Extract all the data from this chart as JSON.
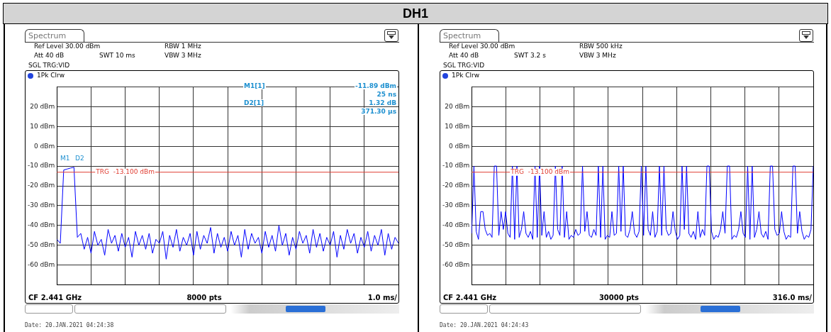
{
  "chart_data": [
    {
      "type": "line",
      "title": "DH1",
      "annotations": [
        "Spectrum",
        "Ref Level 30.00 dBm",
        "Att 40 dB",
        "SWT 10 ms",
        "RBW 1 MHz",
        "VBW 3 MHz",
        "SGL TRG:VID",
        "1Pk Clrw",
        "CF 2.441 GHz",
        "8000 pts",
        "1.0 ms/",
        "Date: 20.JAN.2021 04:24:38",
        "M1[1]",
        "-11.89 dBm",
        "25 ns",
        "D2[1]",
        "1.32 dB",
        "371.30 μs",
        "M1",
        "D2"
      ],
      "categories": [
        null,
        null,
        null,
        null,
        null,
        null,
        null,
        null,
        null,
        null,
        null,
        null,
        null,
        null,
        null,
        null,
        null,
        null,
        null,
        null,
        null,
        null,
        null,
        null,
        null,
        null,
        null,
        null,
        null,
        null,
        null,
        null,
        null,
        null,
        null,
        null,
        null,
        null,
        null,
        null,
        null,
        null,
        null,
        null,
        null,
        null,
        null,
        null,
        null,
        null,
        null,
        null,
        null,
        null,
        null,
        null,
        null,
        null,
        null,
        null,
        null,
        null,
        null,
        null,
        null,
        null,
        null,
        null,
        null,
        null,
        null,
        null,
        null,
        null,
        null,
        null,
        null,
        null,
        null,
        null,
        null,
        null,
        null,
        null,
        null,
        null,
        null,
        null,
        null,
        null,
        null,
        null,
        null,
        null,
        null,
        null,
        null,
        null,
        null,
        null,
        null
      ],
      "ylim": [
        -70,
        30
      ],
      "yticks": [
        {
          "value": -70,
          "label": null
        },
        {
          "value": -60,
          "label": "-60 dBm"
        },
        {
          "value": -50,
          "label": "-50 dBm"
        },
        {
          "value": -40,
          "label": "-40 dBm"
        },
        {
          "value": -30,
          "label": "-30 dBm"
        },
        {
          "value": -20,
          "label": "-20 dBm"
        },
        {
          "value": -10,
          "label": "-10 dBm"
        },
        {
          "value": 0,
          "label": "0 dBm"
        },
        {
          "value": 10,
          "label": "10 dBm"
        },
        {
          "value": 20,
          "label": "20 dBm"
        },
        {
          "value": 30,
          "label": null
        }
      ],
      "tick_labels": "y",
      "grid": true,
      "legend": false,
      "marker": "none",
      "line_style": "solid",
      "ref_lines": [
        {
          "axis": "y",
          "value": -13.1,
          "label": "TRG  -13.100 dBm",
          "color": "#e03c31"
        }
      ],
      "series": [
        {
          "color": "#0000ff",
          "values": [
            -47,
            -49,
            -12,
            -11.5,
            -11,
            -10.6,
            -46,
            -44,
            -52,
            -46,
            -54,
            -43,
            -50,
            -47,
            -55,
            -42,
            -49,
            -45,
            -53,
            -44,
            -51,
            -46,
            -56,
            -43,
            -50,
            -45,
            -52,
            -44,
            -54,
            -47,
            -49,
            -43,
            -57,
            -45,
            -51,
            -42,
            -53,
            -46,
            -50,
            -44,
            -55,
            -43,
            -52,
            -45,
            -49,
            -41,
            -54,
            -44,
            -51,
            -46,
            -53,
            -43,
            -50,
            -45,
            -56,
            -42,
            -52,
            -44,
            -49,
            -46,
            -54,
            -43,
            -51,
            -45,
            -53,
            -40,
            -50,
            -44,
            -55,
            -46,
            -52,
            -43,
            -49,
            -45,
            -54,
            -42,
            -51,
            -44,
            -53,
            -46,
            -50,
            -43,
            -56,
            -45,
            -52,
            -42,
            -49,
            -44,
            -54,
            -46,
            -51,
            -43,
            -53,
            -45,
            -50,
            -42,
            -55,
            -44,
            -52,
            -46,
            -49
          ]
        }
      ]
    },
    {
      "type": "line",
      "annotations": [
        "Spectrum",
        "Ref Level 30.00 dBm",
        "Att 40 dB",
        "SWT 3.2 s",
        "RBW 500 kHz",
        "VBW 3 MHz",
        "SGL TRG:VID",
        "1Pk Clrw",
        "CF 2.441 GHz",
        "30000 pts",
        "316.0 ms/",
        "Date: 20.JAN.2021 04:24:43"
      ],
      "categories": [
        null,
        null,
        null,
        null,
        null,
        null,
        null,
        null,
        null,
        null,
        null,
        null,
        null,
        null,
        null,
        null,
        null,
        null,
        null,
        null,
        null,
        null,
        null,
        null,
        null,
        null,
        null,
        null,
        null,
        null,
        null,
        null,
        null,
        null,
        null,
        null,
        null,
        null,
        null,
        null,
        null,
        null,
        null,
        null,
        null,
        null,
        null,
        null,
        null,
        null,
        null,
        null,
        null,
        null,
        null,
        null,
        null,
        null,
        null,
        null,
        null,
        null,
        null,
        null,
        null,
        null,
        null,
        null,
        null,
        null,
        null,
        null,
        null,
        null,
        null,
        null,
        null,
        null,
        null,
        null,
        null,
        null,
        null,
        null,
        null,
        null,
        null,
        null,
        null,
        null,
        null,
        null,
        null,
        null,
        null,
        null,
        null,
        null,
        null,
        null,
        null,
        null,
        null,
        null,
        null,
        null,
        null,
        null,
        null,
        null,
        null,
        null,
        null,
        null,
        null,
        null,
        null,
        null,
        null,
        null,
        null,
        null,
        null,
        null,
        null,
        null,
        null,
        null,
        null,
        null,
        null,
        null,
        null,
        null,
        null,
        null,
        null,
        null,
        null,
        null,
        null,
        null,
        null,
        null,
        null,
        null,
        null,
        null,
        null,
        null,
        null,
        null
      ],
      "ylim": [
        -70,
        30
      ],
      "yticks": [
        {
          "value": -70,
          "label": null
        },
        {
          "value": -60,
          "label": "-60 dBm"
        },
        {
          "value": -50,
          "label": "-50 dBm"
        },
        {
          "value": -40,
          "label": "-40 dBm"
        },
        {
          "value": -30,
          "label": "-30 dBm"
        },
        {
          "value": -20,
          "label": "-20 dBm"
        },
        {
          "value": -10,
          "label": "-10 dBm"
        },
        {
          "value": 0,
          "label": "0 dBm"
        },
        {
          "value": 10,
          "label": "10 dBm"
        },
        {
          "value": 20,
          "label": "20 dBm"
        },
        {
          "value": 30,
          "label": null
        }
      ],
      "tick_labels": "y",
      "grid": true,
      "legend": false,
      "marker": "none",
      "line_style": "solid",
      "ref_lines": [
        {
          "axis": "y",
          "value": -13.1,
          "label": "TRG  -13.100 dBm",
          "color": "#e03c31"
        }
      ],
      "series": [
        {
          "color": "#0000ff",
          "values": [
            -44,
            -10,
            -43,
            -47,
            -33,
            -33,
            -42,
            -45,
            -44,
            -46,
            -10,
            -10,
            -45,
            -33,
            -42,
            -33,
            -44,
            -46,
            -10,
            -47,
            -10,
            -46,
            -42,
            -33,
            -44,
            -46,
            -43,
            -47,
            -10,
            -46,
            -10,
            -45,
            -33,
            -46,
            -43,
            -47,
            -45,
            -10,
            -42,
            -45,
            -10,
            -46,
            -33,
            -47,
            -45,
            -46,
            -42,
            -45,
            -44,
            -10,
            -43,
            -33,
            -45,
            -46,
            -42,
            -45,
            -10,
            -46,
            -10,
            -47,
            -45,
            -46,
            -33,
            -45,
            -44,
            -10,
            -43,
            -10,
            -45,
            -46,
            -42,
            -33,
            -44,
            -46,
            -43,
            -10,
            -45,
            -10,
            -42,
            -45,
            -33,
            -46,
            -43,
            -10,
            -45,
            -10,
            -42,
            -45,
            -44,
            -33,
            -43,
            -47,
            -45,
            -10,
            -42,
            -10,
            -44,
            -46,
            -43,
            -47,
            -33,
            -46,
            -42,
            -45,
            -10,
            -10,
            -43,
            -47,
            -45,
            -46,
            -42,
            -33,
            -44,
            -10,
            -10,
            -47,
            -45,
            -46,
            -42,
            -33,
            -44,
            -46,
            -10,
            -47,
            -10,
            -46,
            -42,
            -33,
            -44,
            -46,
            -43,
            -47,
            -10,
            -10,
            -42,
            -45,
            -44,
            -33,
            -43,
            -47,
            -45,
            -46,
            -10,
            -10,
            -44,
            -33,
            -43,
            -47,
            -45,
            -46,
            -42,
            -10
          ]
        }
      ]
    }
  ]
}
